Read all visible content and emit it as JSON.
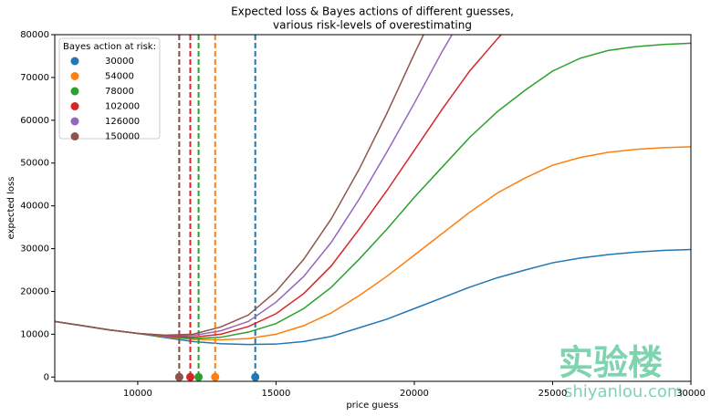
{
  "chart_data": {
    "type": "line",
    "title": "Expected loss & Bayes actions of different guesses,",
    "subtitle": "various risk-levels of overestimating",
    "x_label": "price guess",
    "y_label": "expected loss",
    "legend_title": "Bayes action at risk:",
    "legend": "upper left",
    "watermark": "实验楼",
    "watermark_url": "shiyanlou.com",
    "xlim": [
      7000,
      30000
    ],
    "ylim": [
      -1000,
      80000
    ],
    "xticks": [
      10000,
      15000,
      20000,
      25000,
      30000
    ],
    "yticks": [
      0,
      10000,
      20000,
      30000,
      40000,
      50000,
      60000,
      70000,
      80000
    ],
    "x": [
      7000,
      8000,
      9000,
      10000,
      11000,
      12000,
      13000,
      14000,
      15000,
      16000,
      17000,
      18000,
      19000,
      20000,
      21000,
      22000,
      23000,
      24000,
      25000,
      26000,
      27000,
      28000,
      29000,
      30000
    ],
    "series": [
      {
        "name": "30000",
        "color": "#1f77b4",
        "action_x": 14250,
        "action_y": 0,
        "values": [
          13000,
          12000,
          11000,
          10200,
          9200,
          8300,
          7800,
          7600,
          7700,
          8300,
          9500,
          11500,
          13500,
          16000,
          18500,
          21000,
          23200,
          25000,
          26700,
          27800,
          28600,
          29200,
          29600,
          29800
        ]
      },
      {
        "name": "54000",
        "color": "#ff7f0e",
        "action_x": 12800,
        "action_y": 0,
        "values": [
          13000,
          12000,
          11000,
          10200,
          9400,
          8800,
          8700,
          9000,
          10000,
          12000,
          15000,
          19000,
          23500,
          28500,
          33500,
          38500,
          43000,
          46500,
          49500,
          51300,
          52500,
          53200,
          53600,
          53800
        ]
      },
      {
        "name": "78000",
        "color": "#2ca02c",
        "action_x": 12200,
        "action_y": 0,
        "values": [
          13000,
          12000,
          11000,
          10200,
          9500,
          9000,
          9300,
          10500,
          12500,
          16000,
          21000,
          27500,
          34500,
          42000,
          49000,
          56000,
          62000,
          67000,
          71500,
          74500,
          76300,
          77200,
          77700,
          78000
        ]
      },
      {
        "name": "102000",
        "color": "#d62728",
        "action_x": 11900,
        "action_y": 0,
        "values": [
          13000,
          12000,
          11000,
          10200,
          9600,
          9300,
          10000,
          11800,
          14800,
          19500,
          26000,
          34500,
          43500,
          53000,
          62500,
          71500,
          79000,
          86000,
          null,
          null,
          null,
          null,
          null,
          null
        ]
      },
      {
        "name": "126000",
        "color": "#9467bd",
        "action_x": 11500,
        "action_y": 0,
        "values": [
          13000,
          12000,
          11000,
          10200,
          9700,
          9700,
          10800,
          13000,
          17500,
          23500,
          31500,
          41500,
          52500,
          64000,
          76000,
          87000,
          null,
          null,
          null,
          null,
          null,
          null,
          null,
          null
        ]
      },
      {
        "name": "150000",
        "color": "#8c564b",
        "action_x": 11500,
        "action_y": 0,
        "values": [
          13000,
          12000,
          11000,
          10200,
          9800,
          10000,
          11700,
          14500,
          20000,
          27500,
          37000,
          48500,
          61500,
          75500,
          89000,
          null,
          null,
          null,
          null,
          null,
          null,
          null,
          null,
          null
        ]
      }
    ]
  }
}
